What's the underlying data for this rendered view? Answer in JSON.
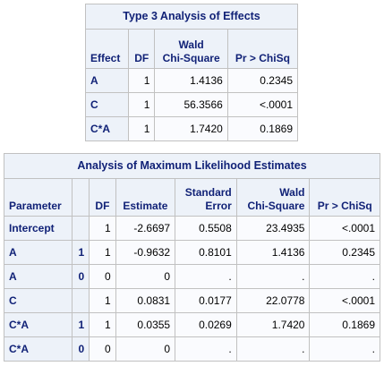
{
  "type3": {
    "title": "Type 3 Analysis of Effects",
    "headers": {
      "effect": "Effect",
      "df": "DF",
      "chisq_top": "Wald",
      "chisq_bottom": "Chi-Square",
      "p": "Pr > ChiSq"
    },
    "rows": [
      {
        "effect": "A",
        "df": "1",
        "chisq": "1.4136",
        "p": "0.2345"
      },
      {
        "effect": "C",
        "df": "1",
        "chisq": "56.3566",
        "p": "<.0001"
      },
      {
        "effect": "C*A",
        "df": "1",
        "chisq": "1.7420",
        "p": "0.1869"
      }
    ]
  },
  "mle": {
    "title": "Analysis of Maximum Likelihood Estimates",
    "headers": {
      "parameter": "Parameter",
      "level": "",
      "df": "DF",
      "estimate": "Estimate",
      "se_top": "Standard",
      "se_bottom": "Error",
      "chisq_top": "Wald",
      "chisq_bottom": "Chi-Square",
      "p": "Pr > ChiSq"
    },
    "rows": [
      {
        "parameter": "Intercept",
        "level": "",
        "df": "1",
        "estimate": "-2.6697",
        "se": "0.5508",
        "chisq": "23.4935",
        "p": "<.0001"
      },
      {
        "parameter": "A",
        "level": "1",
        "df": "1",
        "estimate": "-0.9632",
        "se": "0.8101",
        "chisq": "1.4136",
        "p": "0.2345"
      },
      {
        "parameter": "A",
        "level": "0",
        "df": "0",
        "estimate": "0",
        "se": ".",
        "chisq": ".",
        "p": "."
      },
      {
        "parameter": "C",
        "level": "",
        "df": "1",
        "estimate": "0.0831",
        "se": "0.0177",
        "chisq": "22.0778",
        "p": "<.0001"
      },
      {
        "parameter": "C*A",
        "level": "1",
        "df": "1",
        "estimate": "0.0355",
        "se": "0.0269",
        "chisq": "1.7420",
        "p": "0.1869"
      },
      {
        "parameter": "C*A",
        "level": "0",
        "df": "0",
        "estimate": "0",
        "se": ".",
        "chisq": ".",
        "p": "."
      }
    ]
  }
}
